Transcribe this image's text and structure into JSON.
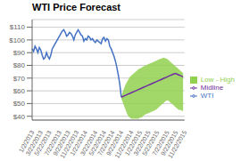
{
  "chart_data": {
    "type": "line",
    "title": "WTI Price Forecast",
    "categories": [
      "1/2/2013",
      null,
      null,
      null,
      null,
      null,
      "3/22/2013",
      null,
      null,
      null,
      null,
      null,
      "5/22/2013",
      null,
      null,
      null,
      null,
      null,
      null,
      "7/22/2013",
      null,
      null,
      null,
      null,
      null,
      "9/22/2013",
      null,
      null,
      null,
      null,
      null,
      "11/22/2013",
      null,
      null,
      null,
      null,
      null,
      "1/22/2014",
      null,
      null,
      null,
      null,
      null,
      null,
      "3/22/2014",
      null,
      null,
      null,
      null,
      null,
      "5/22/2014",
      null,
      null,
      null,
      null,
      null,
      "7/22/2014",
      null,
      null,
      null,
      null,
      null,
      "9/22/2014",
      null,
      null,
      null,
      null,
      null,
      null,
      "11/22/2014",
      null,
      null,
      null,
      null,
      null,
      "1/22/2015",
      null,
      null,
      null,
      null,
      null,
      "3/22/2015",
      null,
      null,
      null,
      null,
      null,
      "5/22/2015",
      null,
      null,
      null,
      null,
      null,
      null,
      "7/22/2015",
      null,
      null,
      null,
      null,
      null,
      "9/22/2015",
      null,
      null,
      null,
      null,
      null,
      "11/22/2015"
    ],
    "series": [
      {
        "name": "Low - High",
        "type": "band",
        "color": "#92d050",
        "low": [
          null,
          null,
          null,
          null,
          null,
          null,
          null,
          null,
          null,
          null,
          null,
          null,
          null,
          null,
          null,
          null,
          null,
          null,
          null,
          null,
          null,
          null,
          null,
          null,
          null,
          null,
          null,
          null,
          null,
          null,
          null,
          null,
          null,
          null,
          null,
          null,
          null,
          null,
          null,
          null,
          null,
          null,
          null,
          null,
          null,
          null,
          null,
          null,
          null,
          null,
          null,
          null,
          null,
          null,
          null,
          null,
          null,
          null,
          null,
          null,
          null,
          null,
          54,
          51,
          48,
          45,
          42,
          40,
          39,
          38,
          38,
          38,
          38,
          38,
          38,
          39,
          39,
          40,
          41,
          41.5,
          42,
          42.5,
          43,
          43.5,
          44,
          44.5,
          45,
          46,
          47,
          48,
          49,
          50,
          51,
          52,
          52.5,
          52,
          51,
          50,
          49,
          48,
          47,
          46,
          45,
          45,
          44.5,
          44,
          null
        ],
        "high": [
          null,
          null,
          null,
          null,
          null,
          null,
          null,
          null,
          null,
          null,
          null,
          null,
          null,
          null,
          null,
          null,
          null,
          null,
          null,
          null,
          null,
          null,
          null,
          null,
          null,
          null,
          null,
          null,
          null,
          null,
          null,
          null,
          null,
          null,
          null,
          null,
          null,
          null,
          null,
          null,
          null,
          null,
          null,
          null,
          null,
          null,
          null,
          null,
          null,
          null,
          null,
          null,
          null,
          null,
          null,
          null,
          null,
          null,
          null,
          null,
          null,
          null,
          56,
          59,
          62,
          65,
          67,
          69,
          71,
          72,
          73,
          74,
          75,
          76,
          77,
          77.5,
          78,
          79,
          79.5,
          80,
          80.5,
          81,
          81.5,
          82,
          82.5,
          83,
          83.5,
          84,
          84.5,
          85,
          85.5,
          86,
          86,
          85.5,
          85,
          84,
          83,
          82,
          81,
          80,
          79,
          78,
          77,
          76,
          75,
          74,
          null
        ]
      },
      {
        "name": "WTI",
        "type": "line",
        "color": "#4472c4",
        "values": [
          93,
          91,
          95,
          93,
          90,
          94,
          92,
          88,
          85,
          86,
          90,
          87,
          85,
          88,
          93,
          95,
          97,
          99,
          101,
          103,
          105,
          107,
          108,
          106,
          103,
          104,
          106,
          105,
          103,
          100,
          104,
          106,
          108,
          106,
          104,
          103,
          99,
          101,
          100,
          103,
          102,
          100,
          101,
          99,
          98,
          100,
          99,
          98,
          97,
          101,
          102,
          99,
          101,
          100,
          95,
          93,
          90,
          87,
          83,
          78,
          72,
          65,
          55,
          null,
          null,
          null,
          null,
          null,
          null,
          null,
          null,
          null,
          null,
          null,
          null,
          null,
          null,
          null,
          null,
          null,
          null,
          null,
          null,
          null,
          null,
          null,
          null,
          null,
          null,
          null,
          null,
          null,
          null,
          null,
          null,
          null,
          null,
          null,
          null,
          null,
          null,
          null,
          null,
          null,
          null,
          null,
          null
        ]
      },
      {
        "name": "Midline",
        "type": "line",
        "color": "#7030a0",
        "values": [
          null,
          null,
          null,
          null,
          null,
          null,
          null,
          null,
          null,
          null,
          null,
          null,
          null,
          null,
          null,
          null,
          null,
          null,
          null,
          null,
          null,
          null,
          null,
          null,
          null,
          null,
          null,
          null,
          null,
          null,
          null,
          null,
          null,
          null,
          null,
          null,
          null,
          null,
          null,
          null,
          null,
          null,
          null,
          null,
          null,
          null,
          null,
          null,
          null,
          null,
          null,
          null,
          null,
          null,
          null,
          null,
          null,
          null,
          null,
          null,
          null,
          null,
          55,
          55.5,
          56,
          56.5,
          57,
          57.5,
          58,
          58.5,
          59,
          59.5,
          60,
          60.5,
          61,
          61.5,
          62,
          62.5,
          63,
          63.5,
          64,
          64.5,
          65,
          65.5,
          66,
          66.5,
          67,
          67.5,
          68,
          68.5,
          69,
          69.5,
          70,
          70.5,
          71,
          71.5,
          72,
          72.5,
          73,
          73.5,
          73.5,
          73,
          72.5,
          72,
          71.5,
          71,
          null
        ]
      }
    ],
    "ylim": [
      37,
      116
    ],
    "yticks": [
      {
        "value": 40,
        "label": "$40"
      },
      {
        "value": 50,
        "label": "$50"
      },
      {
        "value": 60,
        "label": "$60"
      },
      {
        "value": 70,
        "label": "$70"
      },
      {
        "value": 80,
        "label": "$80"
      },
      {
        "value": 90,
        "label": "$90"
      },
      {
        "value": 100,
        "label": "$100"
      },
      {
        "value": 110,
        "label": "$110"
      }
    ],
    "grid": true,
    "legend": "right"
  }
}
